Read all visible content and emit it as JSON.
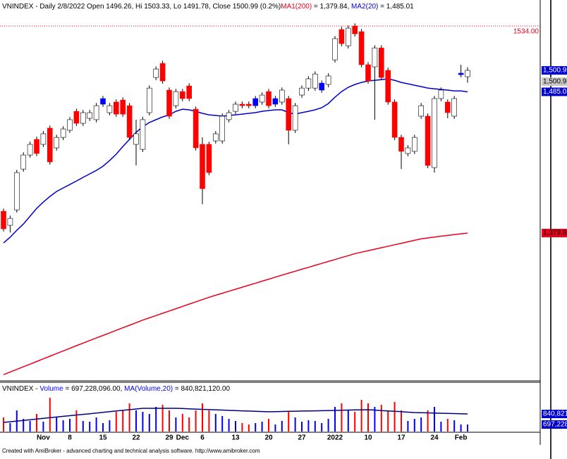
{
  "chart_data": {
    "type": "candlestick",
    "title": "VNINDEX - Daily 2/8/2022 Open 1496.26, Hi 1503.33, Lo 1491.78, Close 1500.99 (0.2%)",
    "categories": [
      null,
      null,
      null,
      null,
      null,
      null,
      "Nov",
      null,
      null,
      null,
      "8",
      null,
      null,
      null,
      null,
      "15",
      null,
      null,
      null,
      null,
      "22",
      null,
      null,
      null,
      null,
      "29",
      null,
      "Dec",
      null,
      null,
      "6",
      null,
      null,
      null,
      null,
      "13",
      null,
      null,
      null,
      null,
      "20",
      null,
      null,
      null,
      null,
      "27",
      null,
      null,
      null,
      null,
      "2022",
      null,
      null,
      null,
      null,
      "10",
      null,
      null,
      null,
      null,
      "17",
      null,
      null,
      null,
      null,
      "24",
      null,
      null,
      null,
      "Feb",
      null
    ],
    "open": [
      1396.1,
      1385.6,
      1397.1,
      1427.5,
      1438.0,
      1449.6,
      1445.9,
      1458.0,
      1443.3,
      1451.1,
      1456.4,
      1470.5,
      1461.6,
      1465.3,
      1464.3,
      1475.8,
      1469.5,
      1477.4,
      1478.9,
      1474.7,
      1445.9,
      1442.2,
      1469.5,
      1495.7,
      1506.2,
      1486.3,
      1474.7,
      1485.2,
      1489.4,
      1472.1,
      1445.9,
      1445.9,
      1448.5,
      1448.5,
      1464.3,
      1470.5,
      1475.8,
      1475.8,
      1474.7,
      1477.4,
      1485.2,
      1475.8,
      1477.4,
      1480.0,
      1456.4,
      1482.6,
      1487.8,
      1487.8,
      1486.3,
      1490.5,
      1508.8,
      1531.4,
      1519.3,
      1534.0,
      1529.8,
      1505.2,
      1503.6,
      1517.7,
      1501.0,
      1477.4,
      1451.1,
      1439.1,
      1440.7,
      1466.9,
      1466.9,
      1428.6,
      1480.0,
      1477.4,
      1466.9,
      1497.8,
      1496.26
    ],
    "high": [
      1398.1,
      1392.8,
      1426.9,
      1440.0,
      1447.9,
      1451.6,
      1455.8,
      1460.0,
      1453.1,
      1459.4,
      1466.3,
      1472.5,
      1471.5,
      1471.5,
      1476.7,
      1482.0,
      1476.7,
      1479.4,
      1480.9,
      1476.7,
      1464.3,
      1466.3,
      1489.8,
      1504.0,
      1508.2,
      1488.3,
      1487.2,
      1487.2,
      1491.4,
      1474.1,
      1451.1,
      1447.9,
      1455.8,
      1468.9,
      1471.5,
      1477.8,
      1477.8,
      1477.8,
      1482.0,
      1484.6,
      1487.2,
      1482.0,
      1488.3,
      1482.0,
      1476.7,
      1489.8,
      1496.7,
      1500.3,
      1493.5,
      1498.8,
      1526.6,
      1533.4,
      1534.4,
      1536.0,
      1531.8,
      1507.2,
      1519.7,
      1519.7,
      1503.0,
      1479.4,
      1453.1,
      1445.3,
      1453.1,
      1476.7,
      1468.9,
      1482.0,
      1488.3,
      1479.4,
      1482.0,
      1505.2,
      1503.33
    ],
    "low": [
      1381.0,
      1380.3,
      1395.1,
      1425.5,
      1436.0,
      1437.1,
      1443.9,
      1430.8,
      1441.3,
      1449.1,
      1454.4,
      1459.6,
      1459.6,
      1463.3,
      1462.3,
      1473.8,
      1467.5,
      1466.4,
      1466.4,
      1449.1,
      1430.2,
      1440.2,
      1467.5,
      1493.7,
      1491.1,
      1464.9,
      1472.7,
      1478.0,
      1478.0,
      1441.3,
      1401.3,
      1422.9,
      1446.5,
      1446.5,
      1462.3,
      1468.5,
      1472.7,
      1472.7,
      1472.7,
      1475.4,
      1472.7,
      1473.8,
      1475.4,
      1445.9,
      1454.4,
      1480.6,
      1485.8,
      1485.8,
      1484.3,
      1488.5,
      1506.8,
      1518.9,
      1517.3,
      1526.2,
      1503.2,
      1491.1,
      1464.3,
      1493.7,
      1475.4,
      1449.1,
      1427.5,
      1437.1,
      1438.7,
      1464.9,
      1428.2,
      1424.9,
      1478.0,
      1465.3,
      1464.9,
      1495.8,
      1491.78
    ],
    "close": [
      1383.0,
      1390.8,
      1424.9,
      1438.0,
      1445.9,
      1439.1,
      1453.8,
      1432.8,
      1451.1,
      1457.4,
      1464.3,
      1461.6,
      1469.5,
      1469.5,
      1474.7,
      1480.0,
      1474.7,
      1468.4,
      1468.4,
      1451.1,
      1453.8,
      1464.3,
      1487.8,
      1502.0,
      1493.1,
      1466.9,
      1485.2,
      1480.0,
      1480.0,
      1443.3,
      1412.9,
      1424.9,
      1453.8,
      1466.9,
      1469.5,
      1475.8,
      1474.7,
      1474.7,
      1480.0,
      1482.6,
      1474.7,
      1480.0,
      1486.3,
      1456.4,
      1474.7,
      1487.8,
      1494.7,
      1498.3,
      1491.5,
      1496.8,
      1524.6,
      1520.9,
      1532.4,
      1528.2,
      1505.2,
      1493.1,
      1517.7,
      1495.7,
      1477.4,
      1451.1,
      1440.7,
      1443.3,
      1451.1,
      1474.7,
      1430.2,
      1480.0,
      1486.3,
      1469.5,
      1480.0,
      1498.9,
      1500.99
    ],
    "candle_colors": [
      "#ff0000",
      "#ffffff",
      "#ffffff",
      "#ffffff",
      "#ffffff",
      "#ff0000",
      "#ffffff",
      "#ff0000",
      "#ffffff",
      "#ffffff",
      "#ffffff",
      "#ff0000",
      "#ffffff",
      "#ffffff",
      "#ffffff",
      "#0000ff",
      "#ffffff",
      "#ff0000",
      "#ff0000",
      "#ff0000",
      "#ffffff",
      "#ffffff",
      "#ffffff",
      "#ffffff",
      "#ff0000",
      "#ff0000",
      "#ffffff",
      "#ff0000",
      "#ff0000",
      "#ff0000",
      "#ff0000",
      "#ff0000",
      "#ffffff",
      "#ffffff",
      "#ffffff",
      "#ffffff",
      "#ff0000",
      "#ff0000",
      "#0000ff",
      "#ffffff",
      "#ff0000",
      "#0000ff",
      "#ffffff",
      "#ff0000",
      "#ffffff",
      "#ffffff",
      "#ffffff",
      "#ffffff",
      "#0000ff",
      "#ffffff",
      "#ffffff",
      "#ff0000",
      "#ffffff",
      "#ff0000",
      "#ff0000",
      "#ff0000",
      "#ffffff",
      "#ff0000",
      "#ff0000",
      "#ff0000",
      "#ff0000",
      "#ffffff",
      "#ffffff",
      "#ffffff",
      "#ff0000",
      "#ffffff",
      "#ffffff",
      "#ff0000",
      "#ffffff",
      "#0000ff",
      "#ffffff"
    ],
    "ylim": [
      1270.3,
      1553.4
    ],
    "close_label": "1,500.99",
    "level": {
      "value": 1534,
      "label": "1534.00"
    },
    "series": [
      {
        "name": "MA1(200)",
        "color": "#e8001c",
        "legend_text": " = 1,379.84, ",
        "value_label": "1,379.84",
        "values": [
          1274.4,
          1276.4,
          1278.3,
          1280.3,
          1282.2,
          1284.2,
          1286.2,
          1288.1,
          1290.1,
          1292.0,
          1294.0,
          1296.0,
          1297.9,
          1299.8,
          1301.7,
          1303.6,
          1305.5,
          1307.4,
          1309.3,
          1311.2,
          1313.1,
          1315.0,
          1316.7,
          1318.4,
          1320.1,
          1321.8,
          1323.5,
          1325.2,
          1326.9,
          1328.6,
          1330.3,
          1332.0,
          1333.5,
          1335.0,
          1336.5,
          1338.0,
          1339.5,
          1341.0,
          1342.5,
          1344.0,
          1345.5,
          1347.0,
          1348.5,
          1350.0,
          1351.4,
          1352.9,
          1354.3,
          1355.8,
          1357.2,
          1358.7,
          1360.1,
          1361.6,
          1363.0,
          1364.5,
          1365.6,
          1366.7,
          1367.8,
          1368.9,
          1370.0,
          1371.1,
          1372.2,
          1373.3,
          1374.4,
          1375.5,
          1376.2,
          1376.9,
          1377.5,
          1378.1,
          1378.7,
          1379.3,
          1379.84
        ]
      },
      {
        "name": "MA2(20)",
        "color": "#0000cc",
        "legend_text": " = 1,485.01",
        "value_label": "1,485.01",
        "values": [
          1372.5,
          1376.7,
          1381.9,
          1386.6,
          1392.4,
          1398.2,
          1402.9,
          1407.1,
          1410.8,
          1413.4,
          1416.0,
          1418.6,
          1421.3,
          1423.9,
          1426.5,
          1429.6,
          1433.8,
          1438.6,
          1444.3,
          1449.6,
          1454.8,
          1459.0,
          1462.2,
          1464.3,
          1466.3,
          1467.9,
          1470.5,
          1472.1,
          1471.6,
          1470.5,
          1469.0,
          1467.9,
          1467.4,
          1466.9,
          1467.4,
          1467.9,
          1468.4,
          1469.0,
          1469.5,
          1470.5,
          1471.1,
          1471.6,
          1471.6,
          1469.5,
          1468.4,
          1469.5,
          1470.5,
          1471.6,
          1473.2,
          1476.3,
          1481.0,
          1485.2,
          1488.4,
          1490.5,
          1492.0,
          1493.1,
          1493.6,
          1494.1,
          1494.7,
          1493.6,
          1492.0,
          1491.0,
          1489.9,
          1488.9,
          1487.8,
          1487.3,
          1486.8,
          1486.3,
          1485.7,
          1485.7,
          1485.01
        ]
      }
    ],
    "volume": {
      "title": "VNINDEX - ",
      "name": "Volume",
      "color": "#0000ff",
      "down_color": "#ff0000",
      "legend_text": " = 697,228,096.00, ",
      "value_label": "697,228,096.00",
      "ylim": [
        601500000,
        1223600000
      ],
      "values": [
        792900000.0,
        716300000.0,
        888600000.0,
        773800000.0,
        745100000.0,
        840800000.0,
        735500000.0,
        1060900000.0,
        792900000.0,
        754600000.0,
        773800000.0,
        888600000.0,
        745100000.0,
        735500000.0,
        792900000.0,
        716300000.0,
        754600000.0,
        869500000.0,
        888600000.0,
        984300000.0,
        888600000.0,
        869500000.0,
        840800000.0,
        936500000.0,
        965200000.0,
        888600000.0,
        792900000.0,
        840800000.0,
        792900000.0,
        888600000.0,
        984300000.0,
        888600000.0,
        840800000.0,
        812000000.0,
        773800000.0,
        745100000.0,
        716300000.0,
        697200000.0,
        716300000.0,
        735500000.0,
        773800000.0,
        697200000.0,
        745100000.0,
        869500000.0,
        792900000.0,
        735500000.0,
        754600000.0,
        745100000.0,
        716300000.0,
        773800000.0,
        936500000.0,
        984300000.0,
        888600000.0,
        869500000.0,
        1032200000.0,
        984300000.0,
        936500000.0,
        965200000.0,
        888600000.0,
        1003400000.0,
        888600000.0,
        745100000.0,
        773800000.0,
        792900000.0,
        888600000.0,
        936500000.0,
        735500000.0,
        773800000.0,
        754600000.0,
        697200000.0,
        697228096
      ],
      "ma": {
        "name": "MA(Volume,20)",
        "color": "#000080",
        "legend_text": " = 840,821,120.00",
        "value_label": "840,821,120.00",
        "values": [
          726000000.0,
          735000000.0,
          744000000.0,
          753000000.0,
          762000000.0,
          772000000.0,
          781000000.0,
          790000000.0,
          799000000.0,
          808000000.0,
          817000000.0,
          826000000.0,
          835000000.0,
          844000000.0,
          853000000.0,
          862000000.0,
          872000000.0,
          881000000.0,
          890000000.0,
          899000000.0,
          908000000.0,
          917000000.0,
          917000000.0,
          917000000.0,
          917000000.0,
          917000000.0,
          917000000.0,
          914000000.0,
          910000000.0,
          907000000.0,
          903000000.0,
          900000000.0,
          897000000.0,
          893000000.0,
          890000000.0,
          886000000.0,
          883000000.0,
          880000000.0,
          876000000.0,
          873000000.0,
          870000000.0,
          872000000.0,
          874000000.0,
          876000000.0,
          878000000.0,
          880000000.0,
          881000000.0,
          883000000.0,
          885000000.0,
          887000000.0,
          889000000.0,
          891000000.0,
          893000000.0,
          895000000.0,
          897000000.0,
          898000000.0,
          893000000.0,
          887000000.0,
          882000000.0,
          876000000.0,
          871000000.0,
          865000000.0,
          860000000.0,
          858000000.0,
          855000000.0,
          853000000.0,
          850000000.0,
          848000000.0,
          846000000.0,
          843000000.0,
          840821120
        ]
      }
    },
    "footer": "Created with AmiBroker - advanced charting and technical analysis software. http://www.amibroker.com"
  }
}
